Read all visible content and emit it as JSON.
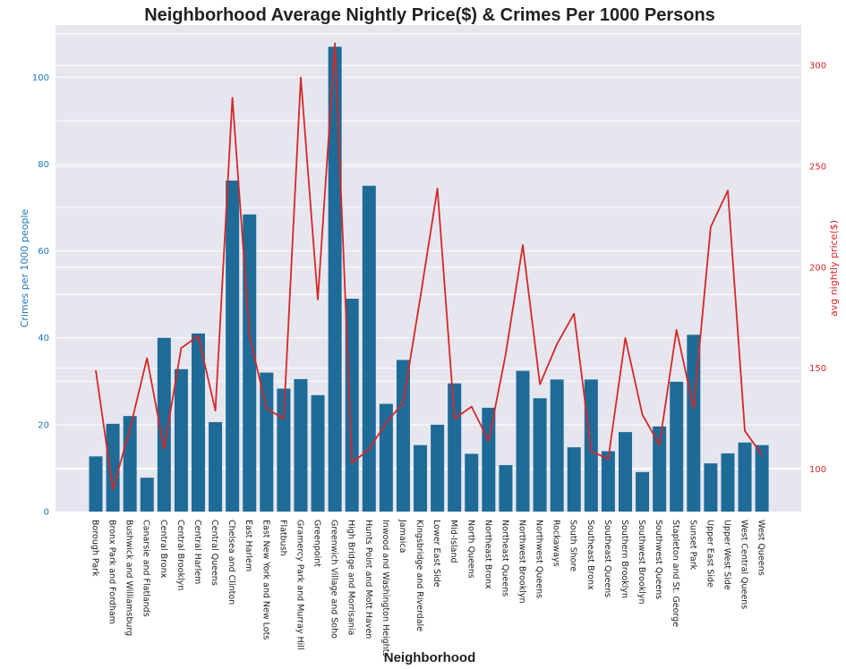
{
  "chart_data": {
    "type": "bar",
    "title": "Neighborhood Average Nightly Price($) & Crimes Per 1000 Persons",
    "xlabel": "Neighborhood",
    "ylabel": "Crimes per 1000 people",
    "y2label": "avg nightly price($)",
    "ylim": [
      0,
      112
    ],
    "y2lim": [
      79,
      320
    ],
    "yticks": [
      0,
      20,
      40,
      60,
      80,
      100
    ],
    "y2ticks": [
      100,
      150,
      200,
      250,
      300
    ],
    "grid": true,
    "colors": {
      "bars": "#1f6b97",
      "line": "#d62728",
      "left_axis": "#1f77b4",
      "right_axis": "#d62728",
      "background": "#e6e6ef",
      "grid": "#ffffff"
    },
    "categories": [
      "Borough Park",
      "Bronx Park and Fordham",
      "Bushwick and Williamsburg",
      "Canarsie and Flatlands",
      "Central Bronx",
      "Central Brooklyn",
      "Central Harlem",
      "Central Queens",
      "Chelsea and Clinton",
      "East Harlem",
      "East New York and New Lots",
      "Flatbush",
      "Gramercy Park and Murray Hill",
      "Greenpoint",
      "Greenwich Village and Soho",
      "High Bridge and Morrisania",
      "Hunts Point and Mott Haven",
      "Inwood and Washington Heights",
      "Jamaica",
      "Kingsbridge and Riverdale",
      "Lower East Side",
      "Mid-Island",
      "North Queens",
      "Northeast Bronx",
      "Northeast Queens",
      "Northwest Brooklyn",
      "Northwest Queens",
      "Rockaways",
      "South Shore",
      "Southeast Bronx",
      "Southeast Queens",
      "Southern Brooklyn",
      "Southwest Brooklyn",
      "Southwest Queens",
      "Stapleton and St. George",
      "Sunset Park",
      "Upper East Side",
      "Upper West Side",
      "West Central Queens",
      "West Queens"
    ],
    "series": [
      {
        "type": "bar",
        "axis": "left",
        "values": [
          12.7,
          20.2,
          22.0,
          7.8,
          40.0,
          32.8,
          41.0,
          20.6,
          76.2,
          68.4,
          32.0,
          28.3,
          30.5,
          26.8,
          107.0,
          49.0,
          75.0,
          24.8,
          34.9,
          15.3,
          20.0,
          29.5,
          13.3,
          23.9,
          10.7,
          32.4,
          26.1,
          30.4,
          14.8,
          30.4,
          13.9,
          18.3,
          9.1,
          19.6,
          29.9,
          40.7,
          11.1,
          13.4,
          15.9,
          15.3
        ]
      },
      {
        "type": "line",
        "axis": "right",
        "values": [
          149,
          90,
          120,
          155,
          110,
          160,
          166,
          129,
          284,
          166,
          130,
          125,
          294,
          184,
          311,
          103,
          110,
          123,
          133,
          185,
          239,
          125,
          131,
          114,
          157,
          211,
          142,
          162,
          177,
          109,
          105,
          165,
          127,
          112,
          169,
          130,
          220,
          238,
          119,
          107
        ]
      }
    ]
  }
}
